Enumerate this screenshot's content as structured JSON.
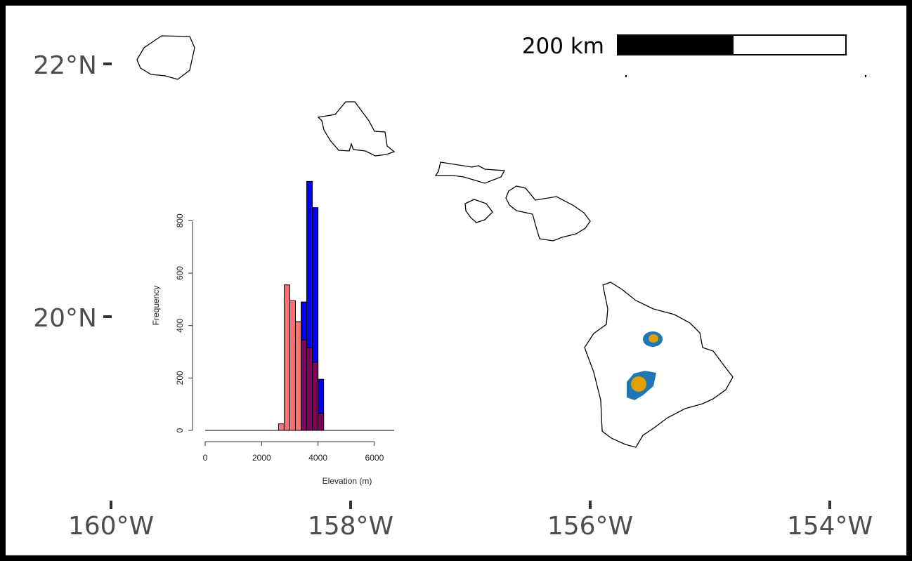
{
  "map": {
    "lat_ticks": [
      {
        "label": "22°N",
        "value": 22
      },
      {
        "label": "20°N",
        "value": 20
      }
    ],
    "lon_ticks": [
      {
        "label": "160°W",
        "value": -160
      },
      {
        "label": "158°W",
        "value": -158
      },
      {
        "label": "156°W",
        "value": -156
      },
      {
        "label": "154°W",
        "value": -154
      }
    ],
    "scale_bar": {
      "label": "200 km",
      "distance_km": 200
    },
    "range_colors": {
      "outer": "#1f77b4",
      "inner": "#e0a000"
    }
  },
  "chart_data": {
    "type": "bar",
    "xlabel": "Elevation (m)",
    "ylabel": "Frequency",
    "xlim": [
      0,
      6600
    ],
    "ylim": [
      0,
      900
    ],
    "x_ticks": [
      0,
      2000,
      4000,
      6000
    ],
    "y_ticks": [
      0,
      200,
      400,
      600,
      800
    ],
    "bin_width": 200,
    "series": [
      {
        "color": "#0000ff",
        "bins": [
          {
            "x0": 3400,
            "x1": 3600,
            "y": 490
          },
          {
            "x0": 3600,
            "x1": 3800,
            "y": 950
          },
          {
            "x0": 3800,
            "x1": 4000,
            "y": 850
          },
          {
            "x0": 4000,
            "x1": 4200,
            "y": 195
          }
        ]
      },
      {
        "color": "#ff7070",
        "bins": [
          {
            "x0": 2600,
            "x1": 2800,
            "y": 25
          },
          {
            "x0": 2800,
            "x1": 3000,
            "y": 555
          },
          {
            "x0": 3000,
            "x1": 3200,
            "y": 495
          },
          {
            "x0": 3200,
            "x1": 3400,
            "y": 415
          },
          {
            "x0": 3400,
            "x1": 3600,
            "y": 345
          },
          {
            "x0": 3600,
            "x1": 3800,
            "y": 315
          },
          {
            "x0": 3800,
            "x1": 4000,
            "y": 260
          },
          {
            "x0": 4000,
            "x1": 4200,
            "y": 65
          }
        ]
      }
    ],
    "overlap_color": "#800060"
  }
}
